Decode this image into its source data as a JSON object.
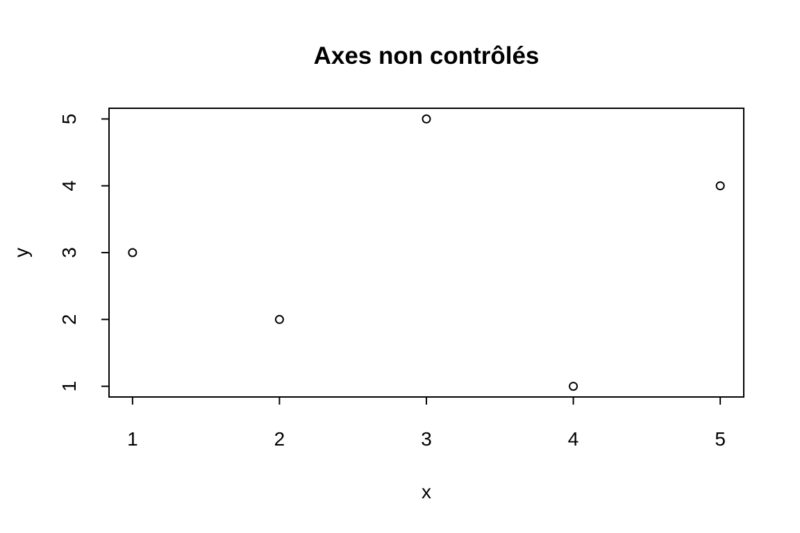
{
  "chart_data": {
    "type": "scatter",
    "title": "Axes non contrôlés",
    "xlabel": "x",
    "ylabel": "y",
    "xlim": [
      0.84,
      5.16
    ],
    "ylim": [
      0.84,
      5.16
    ],
    "x_ticks": [
      1,
      2,
      3,
      4,
      5
    ],
    "y_ticks": [
      1,
      2,
      3,
      4,
      5
    ],
    "grid": false,
    "marker": "open-circle",
    "color": "#000000",
    "series": [
      {
        "x": [
          1,
          2,
          3,
          4,
          5
        ],
        "y": [
          3,
          2,
          5,
          1,
          4
        ]
      }
    ]
  }
}
